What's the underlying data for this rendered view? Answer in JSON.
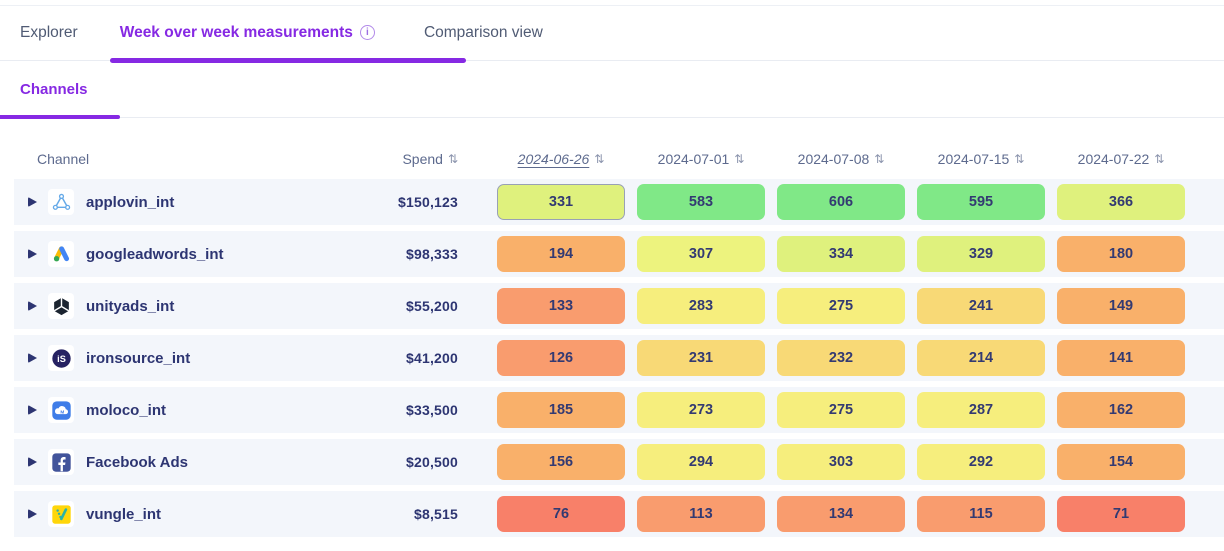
{
  "accent": "#8629e3",
  "tabs": [
    {
      "label": "Explorer",
      "active": false
    },
    {
      "label": "Week over week measurements",
      "active": true,
      "info_icon": "i"
    },
    {
      "label": "Comparison view",
      "active": false
    }
  ],
  "subtab": {
    "label": "Channels",
    "active": true
  },
  "sort_icon": "⇅",
  "table": {
    "headers": {
      "channel": "Channel",
      "spend": "Spend"
    },
    "date_columns": [
      {
        "label": "2024-06-26",
        "selected": true
      },
      {
        "label": "2024-07-01",
        "selected": false
      },
      {
        "label": "2024-07-08",
        "selected": false
      },
      {
        "label": "2024-07-15",
        "selected": false
      },
      {
        "label": "2024-07-22",
        "selected": false
      }
    ],
    "palette": {
      "green": "#80e887",
      "lime": "#dff17d",
      "yellowlime": "#edf37e",
      "yellow": "#f6ee7d",
      "amber": "#f8d976",
      "orange": "#f9b06a",
      "salmon": "#f99c6e",
      "red": "#f88069"
    },
    "rows": [
      {
        "channel": "applovin_int",
        "icon": "applovin-icon",
        "spend": "$150,123",
        "values": [
          {
            "v": "331",
            "c": "lime",
            "selected": true
          },
          {
            "v": "583",
            "c": "green"
          },
          {
            "v": "606",
            "c": "green"
          },
          {
            "v": "595",
            "c": "green"
          },
          {
            "v": "366",
            "c": "lime"
          }
        ]
      },
      {
        "channel": "googleadwords_int",
        "icon": "google-ads-icon",
        "spend": "$98,333",
        "values": [
          {
            "v": "194",
            "c": "orange"
          },
          {
            "v": "307",
            "c": "yellowlime"
          },
          {
            "v": "334",
            "c": "lime"
          },
          {
            "v": "329",
            "c": "lime"
          },
          {
            "v": "180",
            "c": "orange"
          }
        ]
      },
      {
        "channel": "unityads_int",
        "icon": "unity-icon",
        "spend": "$55,200",
        "values": [
          {
            "v": "133",
            "c": "salmon"
          },
          {
            "v": "283",
            "c": "yellow"
          },
          {
            "v": "275",
            "c": "yellow"
          },
          {
            "v": "241",
            "c": "amber"
          },
          {
            "v": "149",
            "c": "orange"
          }
        ]
      },
      {
        "channel": "ironsource_int",
        "icon": "ironsource-icon",
        "spend": "$41,200",
        "values": [
          {
            "v": "126",
            "c": "salmon"
          },
          {
            "v": "231",
            "c": "amber"
          },
          {
            "v": "232",
            "c": "amber"
          },
          {
            "v": "214",
            "c": "amber"
          },
          {
            "v": "141",
            "c": "orange"
          }
        ]
      },
      {
        "channel": "moloco_int",
        "icon": "moloco-icon",
        "spend": "$33,500",
        "values": [
          {
            "v": "185",
            "c": "orange"
          },
          {
            "v": "273",
            "c": "yellow"
          },
          {
            "v": "275",
            "c": "yellow"
          },
          {
            "v": "287",
            "c": "yellow"
          },
          {
            "v": "162",
            "c": "orange"
          }
        ]
      },
      {
        "channel": "Facebook Ads",
        "icon": "facebook-icon",
        "spend": "$20,500",
        "values": [
          {
            "v": "156",
            "c": "orange"
          },
          {
            "v": "294",
            "c": "yellow"
          },
          {
            "v": "303",
            "c": "yellow"
          },
          {
            "v": "292",
            "c": "yellow"
          },
          {
            "v": "154",
            "c": "orange"
          }
        ]
      },
      {
        "channel": "vungle_int",
        "icon": "vungle-icon",
        "spend": "$8,515",
        "values": [
          {
            "v": "76",
            "c": "red"
          },
          {
            "v": "113",
            "c": "salmon"
          },
          {
            "v": "134",
            "c": "salmon"
          },
          {
            "v": "115",
            "c": "salmon"
          },
          {
            "v": "71",
            "c": "red"
          }
        ]
      }
    ]
  }
}
